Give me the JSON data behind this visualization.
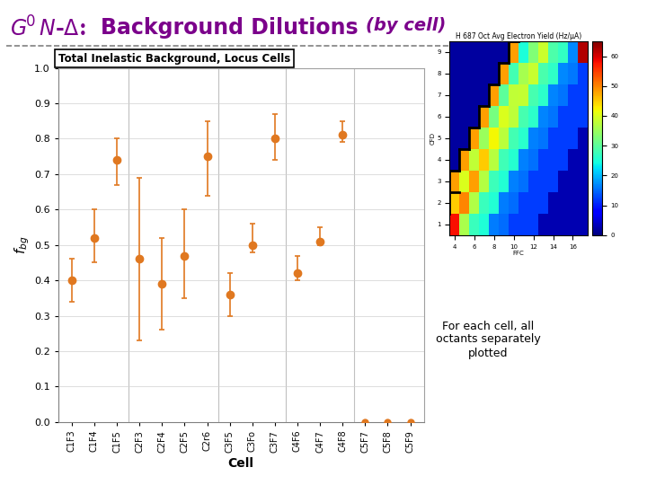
{
  "title_color": "#7B008B",
  "plot_title": "Total Inelastic Background, Locus Cells",
  "xlabel": "Cell",
  "ylim": [
    0.0,
    1.0
  ],
  "yticks": [
    0.0,
    0.1,
    0.2,
    0.3,
    0.4,
    0.5,
    0.6,
    0.7,
    0.8,
    0.9,
    1.0
  ],
  "categories": [
    "C1F3",
    "C1F4",
    "C1F5",
    "C2F3",
    "C2F4",
    "C2F5",
    "C2r6",
    "C3F5",
    "C3Fo",
    "C3F7",
    "C4F6",
    "C4F7",
    "C4F8",
    "C5F7",
    "C5F8",
    "C5F9"
  ],
  "centers": [
    0.4,
    0.52,
    0.74,
    0.46,
    0.39,
    0.47,
    0.75,
    0.36,
    0.5,
    0.8,
    0.42,
    0.51,
    0.81,
    0.0,
    0.0,
    0.0
  ],
  "err_lo": [
    0.06,
    0.07,
    0.07,
    0.23,
    0.13,
    0.12,
    0.11,
    0.06,
    0.02,
    0.06,
    0.02,
    0.01,
    0.02,
    0.0,
    0.0,
    0.0
  ],
  "err_hi": [
    0.06,
    0.08,
    0.06,
    0.23,
    0.13,
    0.13,
    0.1,
    0.06,
    0.06,
    0.07,
    0.05,
    0.04,
    0.04,
    0.0,
    0.0,
    0.0
  ],
  "zero_pts": [
    13,
    14,
    15
  ],
  "orange_color": "#E07820",
  "vline_positions": [
    2.5,
    6.5,
    9.5,
    12.5
  ],
  "annotation": "For each cell, all\noctants separately\nplotted",
  "colormap_title": "H 687 Oct Avg Electron Yield (Hz/μA)"
}
